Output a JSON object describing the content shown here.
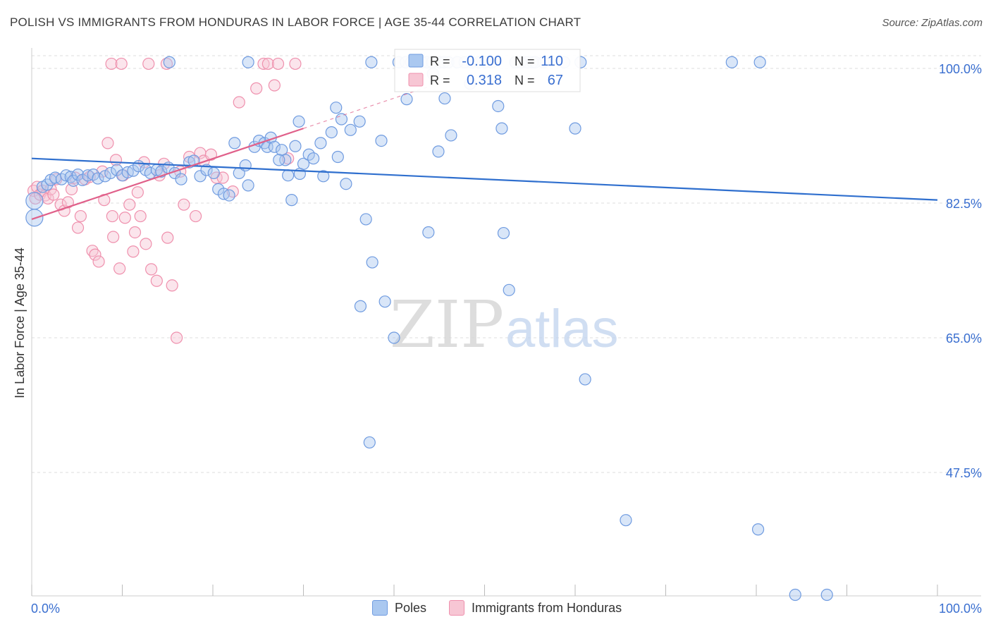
{
  "title": "POLISH VS IMMIGRANTS FROM HONDURAS IN LABOR FORCE | AGE 35-44 CORRELATION CHART",
  "source": "Source: ZipAtlas.com",
  "colors": {
    "poles": "#6f9be0",
    "poles_fill": "#aac8f0",
    "honduras": "#ef90ad",
    "honduras_fill": "#f7c6d4",
    "poles_line": "#2f6fce",
    "honduras_line": "#e0608a",
    "value_text": "#3a6fd0"
  },
  "legend_box": {
    "rows": [
      {
        "r_label": "R =",
        "r_value": "-0.100",
        "n_label": "N =",
        "n_value": "110"
      },
      {
        "r_label": "R =",
        "r_value": "0.318",
        "n_label": "N =",
        "n_value": "67"
      }
    ]
  },
  "watermark": {
    "part1": "ZIP",
    "part2": "atlas"
  },
  "chart_data": {
    "type": "scatter",
    "title": "POLISH VS IMMIGRANTS FROM HONDURAS IN LABOR FORCE | AGE 35-44 CORRELATION CHART",
    "xlabel": "",
    "ylabel": "In Labor Force | Age 35-44",
    "xlim": [
      0,
      100
    ],
    "ylim": [
      30.5,
      102
    ],
    "x_tick_labels": [
      "0.0%",
      "100.0%"
    ],
    "y_ticks": [
      100.0,
      82.5,
      65.0,
      47.5
    ],
    "y_tick_labels": [
      "100.0%",
      "82.5%",
      "65.0%",
      "47.5%"
    ],
    "grid": true,
    "legend_position": "bottom-center",
    "series": [
      {
        "name": "Poles",
        "trend": {
          "x": [
            0,
            100
          ],
          "y": [
            88.3,
            82.9
          ]
        },
        "points": [
          [
            0.3,
            82.8
          ],
          [
            0.3,
            80.6
          ],
          [
            1.2,
            84.6
          ],
          [
            1.7,
            84.9
          ],
          [
            2.1,
            85.5
          ],
          [
            2.6,
            85.8
          ],
          [
            3.3,
            85.6
          ],
          [
            3.8,
            86.1
          ],
          [
            4.3,
            85.9
          ],
          [
            4.6,
            85.4
          ],
          [
            5.1,
            86.2
          ],
          [
            5.6,
            85.5
          ],
          [
            6.2,
            86.1
          ],
          [
            6.8,
            86.2
          ],
          [
            7.3,
            85.7
          ],
          [
            8.1,
            86.0
          ],
          [
            8.7,
            86.4
          ],
          [
            9.4,
            86.8
          ],
          [
            10.0,
            86.1
          ],
          [
            10.6,
            86.5
          ],
          [
            11.2,
            86.7
          ],
          [
            11.8,
            87.3
          ],
          [
            12.6,
            86.8
          ],
          [
            13.1,
            86.4
          ],
          [
            13.8,
            86.8
          ],
          [
            14.3,
            86.6
          ],
          [
            15.1,
            87.1
          ],
          [
            15.8,
            86.4
          ],
          [
            16.5,
            85.6
          ],
          [
            17.4,
            87.8
          ],
          [
            17.9,
            88.0
          ],
          [
            18.6,
            86.0
          ],
          [
            19.3,
            86.8
          ],
          [
            20.1,
            86.4
          ],
          [
            20.6,
            84.3
          ],
          [
            21.2,
            83.7
          ],
          [
            21.8,
            83.5
          ],
          [
            22.4,
            90.3
          ],
          [
            22.9,
            86.4
          ],
          [
            23.6,
            87.4
          ],
          [
            23.9,
            84.8
          ],
          [
            24.6,
            89.8
          ],
          [
            25.1,
            90.6
          ],
          [
            25.7,
            90.3
          ],
          [
            26.0,
            89.8
          ],
          [
            26.4,
            91.0
          ],
          [
            26.8,
            89.8
          ],
          [
            27.6,
            89.4
          ],
          [
            28.0,
            88.1
          ],
          [
            28.3,
            86.1
          ],
          [
            28.7,
            82.9
          ],
          [
            29.1,
            89.9
          ],
          [
            29.6,
            86.3
          ],
          [
            30.0,
            87.6
          ],
          [
            30.6,
            88.8
          ],
          [
            31.1,
            88.3
          ],
          [
            31.9,
            90.3
          ],
          [
            32.2,
            86.0
          ],
          [
            33.1,
            91.7
          ],
          [
            33.6,
            94.9
          ],
          [
            33.8,
            88.5
          ],
          [
            34.2,
            93.4
          ],
          [
            35.2,
            92.0
          ],
          [
            36.2,
            93.1
          ],
          [
            34.7,
            85.0
          ],
          [
            36.9,
            80.4
          ],
          [
            37.6,
            74.8
          ],
          [
            38.6,
            90.6
          ],
          [
            36.3,
            69.1
          ],
          [
            40.0,
            65.0
          ],
          [
            37.3,
            51.4
          ],
          [
            39.0,
            69.7
          ],
          [
            40.5,
            100.8
          ],
          [
            41.3,
            100.8
          ],
          [
            41.9,
            100.8
          ],
          [
            42.4,
            100.8
          ],
          [
            43.1,
            100.8
          ],
          [
            43.6,
            100.8
          ],
          [
            44.2,
            100.8
          ],
          [
            45.1,
            100.8
          ],
          [
            45.5,
            100.8
          ],
          [
            46.0,
            100.8
          ],
          [
            44.3,
            99.3
          ],
          [
            45.6,
            96.1
          ],
          [
            41.4,
            96.0
          ],
          [
            43.8,
            78.7
          ],
          [
            44.9,
            89.2
          ],
          [
            46.3,
            91.3
          ],
          [
            47.0,
            100.8
          ],
          [
            47.8,
            100.8
          ],
          [
            48.6,
            100.8
          ],
          [
            49.4,
            100.8
          ],
          [
            50.1,
            100.8
          ],
          [
            50.8,
            100.8
          ],
          [
            51.5,
            95.1
          ],
          [
            51.9,
            92.2
          ],
          [
            52.1,
            78.6
          ],
          [
            52.7,
            71.2
          ],
          [
            53.4,
            100.8
          ],
          [
            54.0,
            100.8
          ],
          [
            54.7,
            100.8
          ],
          [
            55.3,
            100.8
          ],
          [
            56.5,
            100.8
          ],
          [
            58.8,
            100.8
          ],
          [
            60.6,
            100.8
          ],
          [
            77.3,
            100.8
          ],
          [
            80.4,
            100.8
          ],
          [
            61.1,
            59.6
          ],
          [
            65.6,
            41.3
          ],
          [
            80.2,
            40.1
          ],
          [
            84.3,
            31.6
          ],
          [
            87.8,
            31.6
          ],
          [
            27.3,
            88.1
          ],
          [
            29.5,
            93.1
          ],
          [
            15.2,
            100.8
          ],
          [
            23.9,
            100.8
          ],
          [
            37.5,
            100.8
          ],
          [
            48.4,
            98.0
          ],
          [
            55.6,
            100.8
          ],
          [
            60.0,
            92.2
          ]
        ]
      },
      {
        "name": "Immigrants from Honduras",
        "trend": {
          "x": [
            0,
            30
          ],
          "y": [
            80.4,
            92.2
          ]
        },
        "trend_extension": {
          "x": [
            30,
            44
          ],
          "y": [
            92.2,
            97.7
          ]
        },
        "points": [
          [
            0.2,
            84.1
          ],
          [
            0.4,
            83.1
          ],
          [
            0.6,
            84.6
          ],
          [
            0.9,
            83.6
          ],
          [
            1.2,
            84.1
          ],
          [
            1.5,
            83.5
          ],
          [
            1.8,
            83.1
          ],
          [
            2.1,
            84.3
          ],
          [
            2.4,
            83.6
          ],
          [
            2.7,
            85.6
          ],
          [
            3.2,
            82.3
          ],
          [
            3.6,
            81.5
          ],
          [
            4.0,
            82.6
          ],
          [
            4.4,
            84.3
          ],
          [
            4.8,
            85.8
          ],
          [
            5.1,
            79.3
          ],
          [
            5.4,
            80.8
          ],
          [
            5.9,
            85.6
          ],
          [
            6.4,
            85.9
          ],
          [
            6.7,
            76.3
          ],
          [
            7.0,
            75.8
          ],
          [
            7.4,
            74.9
          ],
          [
            7.8,
            86.6
          ],
          [
            8.0,
            82.9
          ],
          [
            8.4,
            90.3
          ],
          [
            8.9,
            80.8
          ],
          [
            9.0,
            78.1
          ],
          [
            9.3,
            88.1
          ],
          [
            9.7,
            74.0
          ],
          [
            10.1,
            86.1
          ],
          [
            10.3,
            80.6
          ],
          [
            10.8,
            82.3
          ],
          [
            11.2,
            76.2
          ],
          [
            11.7,
            83.9
          ],
          [
            12.0,
            80.8
          ],
          [
            12.4,
            87.8
          ],
          [
            12.6,
            77.2
          ],
          [
            13.2,
            73.9
          ],
          [
            13.8,
            72.4
          ],
          [
            14.1,
            86.1
          ],
          [
            14.6,
            87.6
          ],
          [
            15.0,
            78.0
          ],
          [
            15.5,
            71.8
          ],
          [
            16.0,
            65.0
          ],
          [
            16.4,
            86.6
          ],
          [
            16.8,
            82.3
          ],
          [
            17.4,
            88.5
          ],
          [
            18.1,
            80.8
          ],
          [
            18.6,
            89.0
          ],
          [
            19.0,
            88.0
          ],
          [
            19.8,
            88.8
          ],
          [
            20.4,
            85.8
          ],
          [
            21.1,
            85.8
          ],
          [
            22.2,
            84.0
          ],
          [
            22.9,
            95.6
          ],
          [
            24.8,
            97.4
          ],
          [
            25.6,
            100.6
          ],
          [
            26.1,
            100.6
          ],
          [
            26.8,
            97.8
          ],
          [
            27.2,
            100.6
          ],
          [
            28.3,
            88.3
          ],
          [
            29.1,
            100.6
          ],
          [
            8.8,
            100.6
          ],
          [
            9.9,
            100.6
          ],
          [
            12.9,
            100.6
          ],
          [
            14.9,
            100.6
          ],
          [
            11.4,
            78.7
          ]
        ]
      }
    ]
  }
}
